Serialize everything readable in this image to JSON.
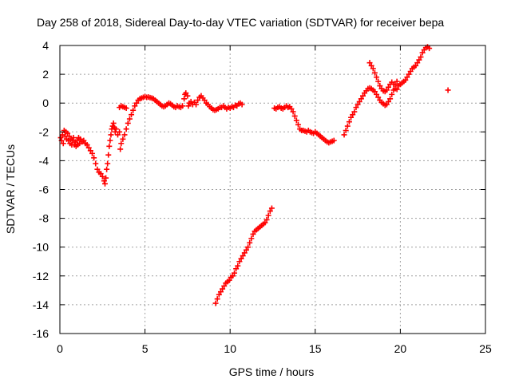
{
  "chart_data": {
    "type": "scatter",
    "title": "Day 258 of 2018, Sidereal Day-to-day VTEC variation (SDTVAR) for receiver bepa",
    "xlabel": "GPS time / hours",
    "ylabel": "SDTVAR / TECUs",
    "xlim": [
      0,
      25
    ],
    "ylim": [
      -16,
      4
    ],
    "xticks": [
      "0",
      "5",
      "10",
      "15",
      "20",
      "25"
    ],
    "yticks": [
      "-16",
      "-14",
      "-12",
      "-10",
      "-8",
      "-6",
      "-4",
      "-2",
      "0",
      "2",
      "4"
    ],
    "xtick_values": [
      0,
      5,
      10,
      15,
      20,
      25
    ],
    "ytick_values": [
      -16,
      -14,
      -12,
      -10,
      -8,
      -6,
      -4,
      -2,
      0,
      2,
      4
    ],
    "grid": true,
    "marker": "plus",
    "color": "#ff0000",
    "series": [
      {
        "points": [
          [
            0.05,
            -2.4
          ],
          [
            0.1,
            -2.6
          ],
          [
            0.15,
            -2.2
          ],
          [
            0.2,
            -2.8
          ],
          [
            0.25,
            -1.9
          ],
          [
            0.3,
            -2.3
          ],
          [
            0.35,
            -2.0
          ],
          [
            0.4,
            -2.5
          ],
          [
            0.45,
            -2.1
          ],
          [
            0.5,
            -2.6
          ],
          [
            0.55,
            -2.3
          ],
          [
            0.6,
            -2.8
          ],
          [
            0.65,
            -2.5
          ],
          [
            0.7,
            -2.9
          ],
          [
            0.75,
            -2.6
          ],
          [
            0.8,
            -2.4
          ],
          [
            0.85,
            -2.9
          ],
          [
            0.9,
            -2.7
          ],
          [
            0.95,
            -3.0
          ],
          [
            1.0,
            -2.6
          ],
          [
            1.05,
            -2.9
          ],
          [
            1.1,
            -2.4
          ],
          [
            1.15,
            -2.8
          ],
          [
            1.2,
            -2.5
          ],
          [
            1.3,
            -2.7
          ],
          [
            1.4,
            -2.6
          ],
          [
            1.5,
            -2.8
          ],
          [
            1.6,
            -2.9
          ],
          [
            1.7,
            -3.1
          ],
          [
            1.8,
            -3.3
          ],
          [
            1.9,
            -3.5
          ],
          [
            2.0,
            -3.8
          ],
          [
            2.1,
            -4.2
          ],
          [
            2.2,
            -4.6
          ],
          [
            2.3,
            -4.8
          ],
          [
            2.4,
            -4.9
          ],
          [
            2.5,
            -5.1
          ],
          [
            2.6,
            -5.4
          ],
          [
            2.65,
            -5.6
          ],
          [
            2.7,
            -5.2
          ],
          [
            2.75,
            -4.6
          ],
          [
            2.8,
            -4.2
          ],
          [
            2.85,
            -3.6
          ],
          [
            2.9,
            -3.0
          ],
          [
            2.95,
            -2.6
          ],
          [
            3.0,
            -2.2
          ],
          [
            3.05,
            -1.8
          ],
          [
            3.1,
            -1.6
          ],
          [
            3.15,
            -1.4
          ],
          [
            3.2,
            -1.7
          ],
          [
            3.25,
            -2.0
          ],
          [
            3.3,
            -1.8
          ],
          [
            3.4,
            -2.2
          ],
          [
            3.5,
            -2.0
          ],
          [
            3.55,
            -3.2
          ],
          [
            3.6,
            -2.8
          ],
          [
            3.7,
            -2.5
          ],
          [
            3.8,
            -2.2
          ],
          [
            3.9,
            -1.8
          ],
          [
            4.0,
            -1.4
          ],
          [
            4.1,
            -1.1
          ],
          [
            4.2,
            -0.8
          ],
          [
            4.3,
            -0.5
          ],
          [
            4.4,
            -0.2
          ],
          [
            4.5,
            0.0
          ],
          [
            4.6,
            0.2
          ],
          [
            4.7,
            0.3
          ],
          [
            4.8,
            0.35
          ],
          [
            4.9,
            0.4
          ],
          [
            5.0,
            0.45
          ],
          [
            5.1,
            0.4
          ],
          [
            5.2,
            0.42
          ],
          [
            5.3,
            0.38
          ],
          [
            5.4,
            0.35
          ],
          [
            5.5,
            0.3
          ],
          [
            5.6,
            0.2
          ],
          [
            5.7,
            0.1
          ],
          [
            5.8,
            0.0
          ],
          [
            5.9,
            -0.1
          ],
          [
            6.0,
            -0.2
          ],
          [
            6.1,
            -0.25
          ],
          [
            6.2,
            -0.2
          ],
          [
            6.3,
            -0.1
          ],
          [
            6.4,
            0.0
          ],
          [
            6.5,
            -0.05
          ],
          [
            6.6,
            -0.15
          ],
          [
            6.7,
            -0.25
          ],
          [
            6.8,
            -0.3
          ],
          [
            6.9,
            -0.2
          ],
          [
            7.0,
            -0.25
          ],
          [
            7.1,
            -0.3
          ],
          [
            7.2,
            -0.2
          ],
          [
            7.3,
            0.3
          ],
          [
            7.35,
            0.6
          ],
          [
            7.4,
            0.7
          ],
          [
            7.5,
            0.5
          ],
          [
            7.55,
            -0.2
          ],
          [
            7.6,
            0.0
          ],
          [
            7.7,
            0.1
          ],
          [
            7.8,
            -0.1
          ],
          [
            7.9,
            0.05
          ],
          [
            8.0,
            -0.1
          ],
          [
            8.1,
            0.2
          ],
          [
            8.2,
            0.4
          ],
          [
            8.3,
            0.5
          ],
          [
            8.4,
            0.35
          ],
          [
            8.5,
            0.2
          ],
          [
            8.6,
            0.0
          ],
          [
            8.7,
            -0.1
          ],
          [
            8.8,
            -0.25
          ],
          [
            8.9,
            -0.35
          ],
          [
            9.0,
            -0.45
          ],
          [
            9.1,
            -0.5
          ],
          [
            9.2,
            -0.45
          ],
          [
            9.3,
            -0.4
          ],
          [
            9.4,
            -0.3
          ],
          [
            9.5,
            -0.3
          ],
          [
            9.6,
            -0.2
          ],
          [
            9.7,
            -0.3
          ],
          [
            9.8,
            -0.4
          ],
          [
            9.9,
            -0.3
          ],
          [
            10.0,
            -0.35
          ],
          [
            10.1,
            -0.25
          ],
          [
            10.2,
            -0.3
          ],
          [
            10.3,
            -0.15
          ],
          [
            10.4,
            -0.2
          ],
          [
            10.5,
            -0.05
          ],
          [
            10.6,
            0.0
          ],
          [
            10.7,
            -0.1
          ],
          [
            3.5,
            -0.3
          ],
          [
            3.6,
            -0.2
          ],
          [
            3.7,
            -0.25
          ],
          [
            3.8,
            -0.3
          ],
          [
            3.9,
            -0.35
          ],
          [
            9.15,
            -13.9
          ],
          [
            9.25,
            -13.6
          ],
          [
            9.35,
            -13.3
          ],
          [
            9.45,
            -13.1
          ],
          [
            9.55,
            -12.9
          ],
          [
            9.65,
            -12.7
          ],
          [
            9.75,
            -12.5
          ],
          [
            9.85,
            -12.4
          ],
          [
            9.95,
            -12.3
          ],
          [
            10.05,
            -12.1
          ],
          [
            10.15,
            -12.0
          ],
          [
            10.25,
            -11.8
          ],
          [
            10.35,
            -11.5
          ],
          [
            10.45,
            -11.3
          ],
          [
            10.55,
            -11.0
          ],
          [
            10.65,
            -10.8
          ],
          [
            10.75,
            -10.6
          ],
          [
            10.85,
            -10.4
          ],
          [
            10.95,
            -10.2
          ],
          [
            11.05,
            -10.0
          ],
          [
            11.15,
            -9.7
          ],
          [
            11.25,
            -9.4
          ],
          [
            11.35,
            -9.1
          ],
          [
            11.45,
            -8.9
          ],
          [
            11.55,
            -8.8
          ],
          [
            11.65,
            -8.7
          ],
          [
            11.75,
            -8.6
          ],
          [
            11.85,
            -8.5
          ],
          [
            11.95,
            -8.4
          ],
          [
            12.05,
            -8.3
          ],
          [
            12.15,
            -8.1
          ],
          [
            12.25,
            -7.8
          ],
          [
            12.35,
            -7.5
          ],
          [
            12.45,
            -7.3
          ],
          [
            12.6,
            -0.35
          ],
          [
            12.7,
            -0.4
          ],
          [
            12.8,
            -0.3
          ],
          [
            12.9,
            -0.25
          ],
          [
            13.0,
            -0.35
          ],
          [
            13.1,
            -0.4
          ],
          [
            13.2,
            -0.3
          ],
          [
            13.3,
            -0.2
          ],
          [
            13.4,
            -0.3
          ],
          [
            13.5,
            -0.25
          ],
          [
            13.6,
            -0.4
          ],
          [
            13.7,
            -0.6
          ],
          [
            13.8,
            -0.9
          ],
          [
            13.9,
            -1.2
          ],
          [
            14.0,
            -1.5
          ],
          [
            14.1,
            -1.8
          ],
          [
            14.2,
            -1.9
          ],
          [
            14.3,
            -1.9
          ],
          [
            14.4,
            -1.95
          ],
          [
            14.5,
            -2.0
          ],
          [
            14.6,
            -1.9
          ],
          [
            14.7,
            -2.0
          ],
          [
            14.8,
            -2.05
          ],
          [
            14.9,
            -2.1
          ],
          [
            15.0,
            -2.0
          ],
          [
            15.1,
            -2.1
          ],
          [
            15.2,
            -2.2
          ],
          [
            15.3,
            -2.3
          ],
          [
            15.4,
            -2.4
          ],
          [
            15.5,
            -2.5
          ],
          [
            15.6,
            -2.6
          ],
          [
            15.7,
            -2.7
          ],
          [
            15.8,
            -2.75
          ],
          [
            15.9,
            -2.7
          ],
          [
            16.0,
            -2.65
          ],
          [
            16.1,
            -2.6
          ],
          [
            16.7,
            -2.2
          ],
          [
            16.8,
            -1.9
          ],
          [
            16.9,
            -1.6
          ],
          [
            17.0,
            -1.3
          ],
          [
            17.1,
            -1.0
          ],
          [
            17.2,
            -0.8
          ],
          [
            17.3,
            -0.6
          ],
          [
            17.4,
            -0.3
          ],
          [
            17.5,
            -0.1
          ],
          [
            17.6,
            0.1
          ],
          [
            17.7,
            0.3
          ],
          [
            17.8,
            0.5
          ],
          [
            17.9,
            0.7
          ],
          [
            18.0,
            0.85
          ],
          [
            18.1,
            1.0
          ],
          [
            18.2,
            1.05
          ],
          [
            18.3,
            1.0
          ],
          [
            18.4,
            0.9
          ],
          [
            18.5,
            0.8
          ],
          [
            18.6,
            0.6
          ],
          [
            18.7,
            0.4
          ],
          [
            18.8,
            0.2
          ],
          [
            18.9,
            0.05
          ],
          [
            19.0,
            -0.05
          ],
          [
            19.1,
            -0.15
          ],
          [
            19.2,
            -0.1
          ],
          [
            19.3,
            0.1
          ],
          [
            19.4,
            0.3
          ],
          [
            19.5,
            0.6
          ],
          [
            19.6,
            0.9
          ],
          [
            19.7,
            1.3
          ],
          [
            19.8,
            1.5
          ],
          [
            18.2,
            2.8
          ],
          [
            18.3,
            2.6
          ],
          [
            18.4,
            2.4
          ],
          [
            18.5,
            2.1
          ],
          [
            18.6,
            1.8
          ],
          [
            18.7,
            1.5
          ],
          [
            18.8,
            1.2
          ],
          [
            18.9,
            1.0
          ],
          [
            19.0,
            0.85
          ],
          [
            19.1,
            0.8
          ],
          [
            19.2,
            0.9
          ],
          [
            19.3,
            1.1
          ],
          [
            19.4,
            1.3
          ],
          [
            19.5,
            1.45
          ],
          [
            19.6,
            1.3
          ],
          [
            19.7,
            1.0
          ],
          [
            19.8,
            0.95
          ],
          [
            19.9,
            1.2
          ],
          [
            20.0,
            1.3
          ],
          [
            20.1,
            1.4
          ],
          [
            20.2,
            1.5
          ],
          [
            20.3,
            1.6
          ],
          [
            20.4,
            1.8
          ],
          [
            20.5,
            2.0
          ],
          [
            20.6,
            2.2
          ],
          [
            20.7,
            2.4
          ],
          [
            20.8,
            2.5
          ],
          [
            20.9,
            2.6
          ],
          [
            21.0,
            2.8
          ],
          [
            21.1,
            3.0
          ],
          [
            21.2,
            3.2
          ],
          [
            21.3,
            3.5
          ],
          [
            21.4,
            3.7
          ],
          [
            21.5,
            3.85
          ],
          [
            21.6,
            3.9
          ],
          [
            21.7,
            3.8
          ],
          [
            22.8,
            0.9
          ]
        ]
      }
    ]
  }
}
